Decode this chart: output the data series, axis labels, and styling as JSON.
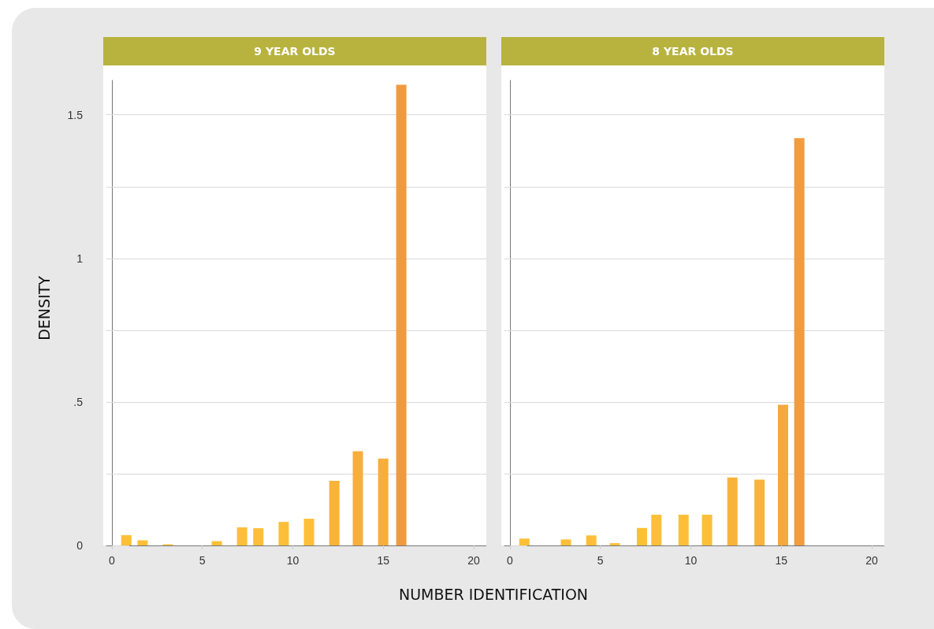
{
  "chart_data": [
    {
      "type": "bar",
      "title": "9 YEAR OLDS",
      "xlabel": "NUMBER IDENTIFICATION",
      "ylabel": "DENSITY",
      "x": [
        0.8,
        1.7,
        3.1,
        5.8,
        7.2,
        8.1,
        9.5,
        10.9,
        12.3,
        13.6,
        15.0,
        16.0
      ],
      "values": [
        0.036,
        0.018,
        0.004,
        0.015,
        0.063,
        0.06,
        0.082,
        0.093,
        0.225,
        0.328,
        0.303,
        1.605
      ],
      "colors": [
        "#fdbf37",
        "#fdbf37",
        "#fdbf37",
        "#fdbf37",
        "#fdbf37",
        "#fdbf37",
        "#fdbf37",
        "#fdbf37",
        "#f9b33a",
        "#f8ae3b",
        "#f8ae3b",
        "#f09a40"
      ],
      "xlim": [
        -0.3,
        20.7
      ],
      "xticks": [
        0,
        5,
        10,
        15,
        20
      ],
      "ylim": [
        0,
        1.62
      ],
      "yticks": [
        0,
        {
          "value": 0.25,
          "label": null
        },
        {
          "value": 0.5,
          "label": ".5"
        },
        {
          "value": 0.75,
          "label": null
        },
        1,
        {
          "value": 1.25,
          "label": null
        },
        1.5
      ],
      "grid": "y"
    },
    {
      "type": "bar",
      "title": "8 YEAR OLDS",
      "x": [
        0.8,
        3.1,
        4.5,
        5.8,
        7.3,
        8.1,
        9.6,
        10.9,
        12.3,
        13.8,
        15.1,
        16.0
      ],
      "values": [
        0.024,
        0.021,
        0.035,
        0.008,
        0.061,
        0.107,
        0.107,
        0.107,
        0.237,
        0.229,
        0.49,
        1.419
      ],
      "colors": [
        "#fdbf37",
        "#fdbf37",
        "#fdbf37",
        "#fdbf37",
        "#fdbf37",
        "#fdbf37",
        "#fdbf37",
        "#fdbf37",
        "#f9b33a",
        "#f9b33a",
        "#f5a83c",
        "#f09c40"
      ],
      "xlim": [
        -0.3,
        20.7
      ],
      "xticks": [
        0,
        5,
        10,
        15,
        20
      ],
      "ylim": [
        0,
        1.62
      ],
      "yticks": [
        {
          "value": 0,
          "label": null
        },
        {
          "value": 0.25,
          "label": null
        },
        {
          "value": 0.5,
          "label": null
        },
        {
          "value": 0.75,
          "label": null
        },
        {
          "value": 1,
          "label": null
        },
        {
          "value": 1.25,
          "label": null
        },
        {
          "value": 1.5,
          "label": null
        }
      ],
      "grid": "y",
      "tick_labels": "x"
    }
  ]
}
